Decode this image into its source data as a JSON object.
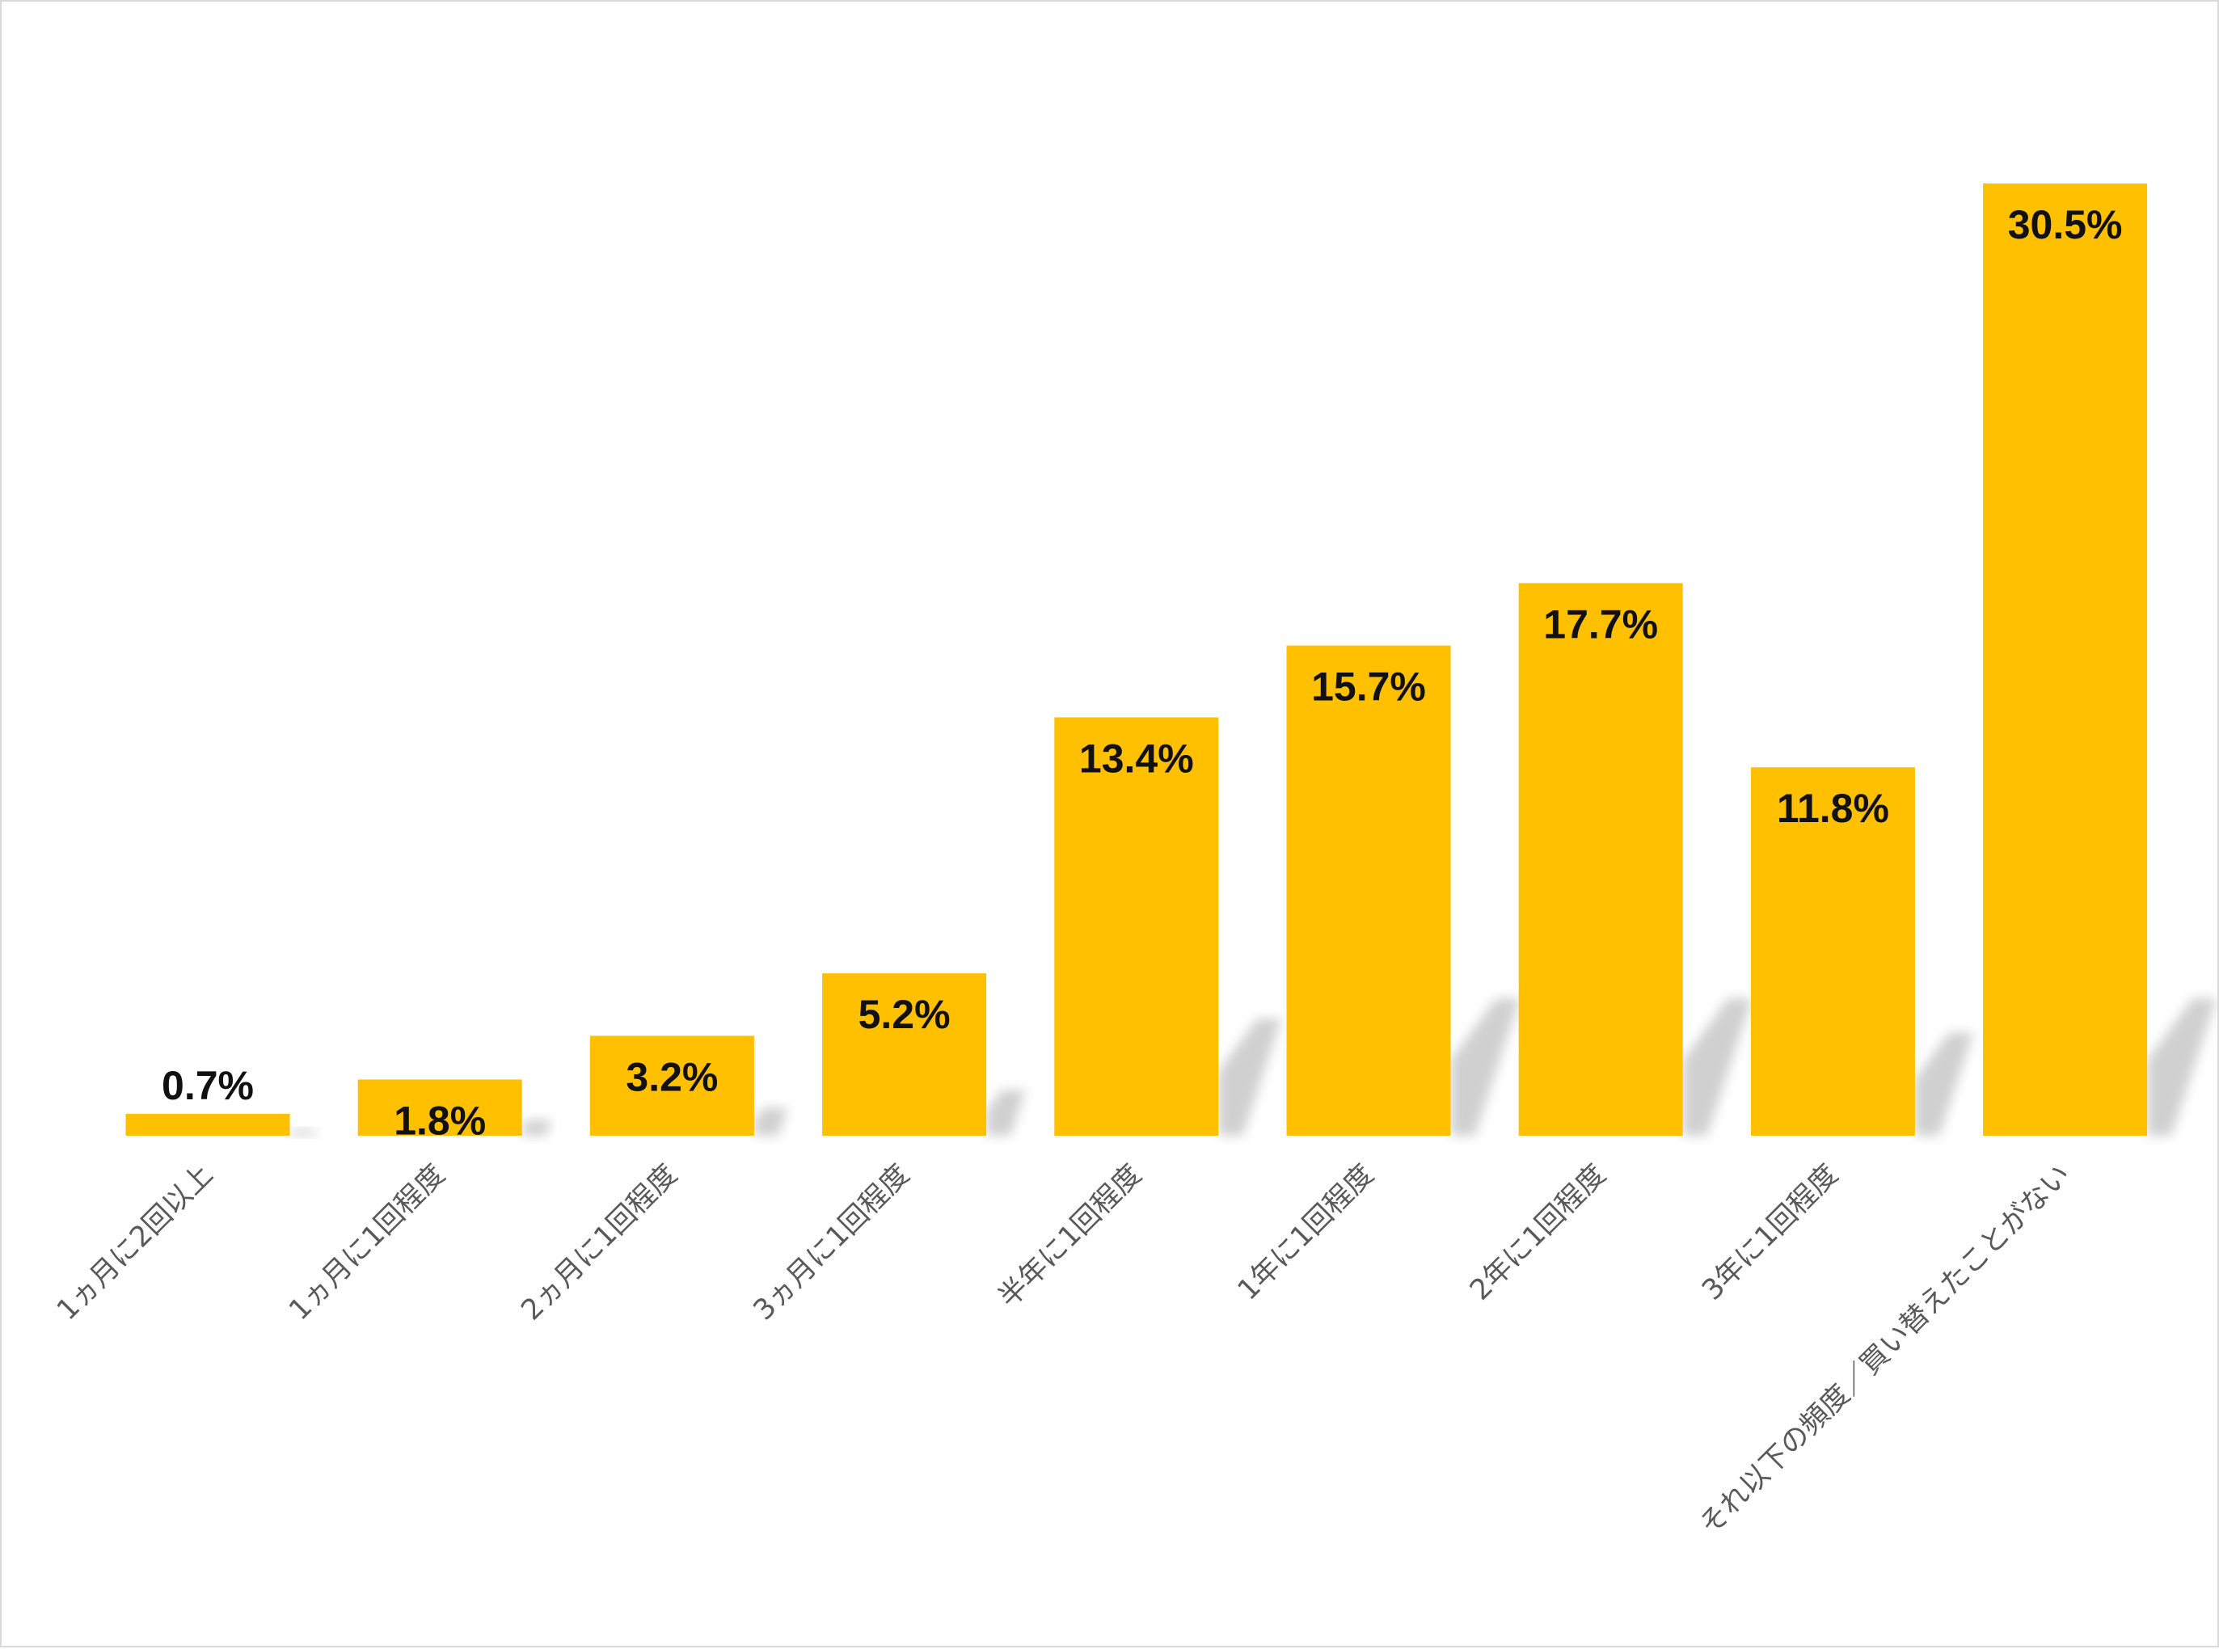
{
  "chart_data": {
    "type": "bar",
    "title": "",
    "xlabel": "",
    "ylabel": "",
    "ylim": [
      0,
      30.5
    ],
    "grid": false,
    "legend": "none",
    "bar_color": "#FFC000",
    "shadow_color": "#d0d0d0",
    "label_color": "#111111",
    "axis_label_color": "#595959",
    "categories": [
      "1ヵ月に2回以上",
      "1ヵ月に1回程度",
      "2ヵ月に1回程度",
      "3ヵ月に1回程度",
      "半年に1回程度",
      "1年に1回程度",
      "2年に1回程度",
      "3年に1回程度",
      "それ以下の頻度／買い替えたことがない"
    ],
    "values": [
      0.7,
      1.8,
      3.2,
      5.2,
      13.4,
      15.7,
      17.7,
      11.8,
      30.5
    ],
    "data_labels": [
      "0.7%",
      "1.8%",
      "3.2%",
      "5.2%",
      "13.4%",
      "15.7%",
      "17.7%",
      "11.8%",
      "30.5%"
    ]
  }
}
